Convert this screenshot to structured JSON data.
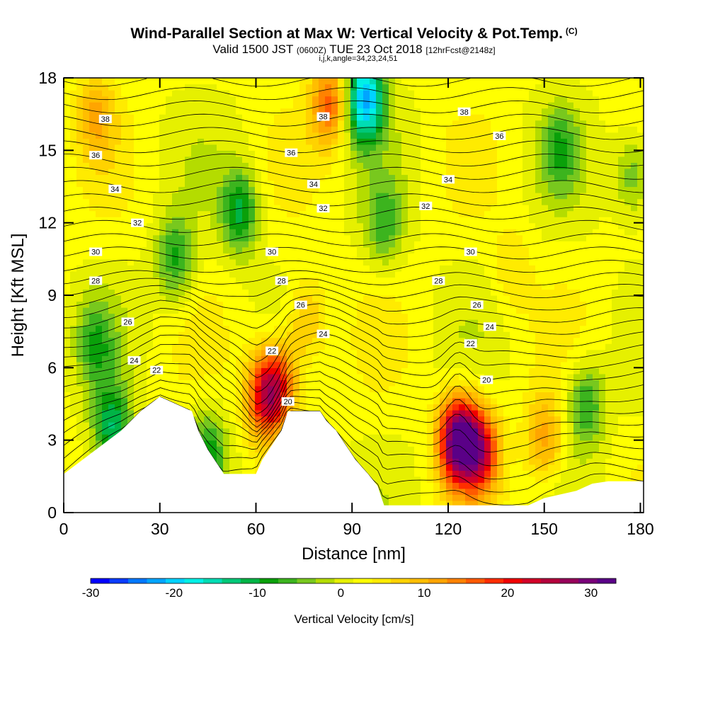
{
  "header": {
    "title_main": "Wind-Parallel Section at Max W: Vertical Velocity & Pot.Temp.",
    "title_mark": "(C)",
    "valid_prefix": "Valid 1500 JST",
    "valid_z": "(0600Z)",
    "valid_date": "TUE 23 Oct 2018",
    "valid_fcst": "[12hrFcst@2148z]",
    "indices": "i,j,k,angle=34,23,24,51"
  },
  "colors": {
    "colorbar": [
      "#0000ff",
      "#0a3cff",
      "#0078ff",
      "#00a5ff",
      "#00d2ff",
      "#00f0e6",
      "#00dcb4",
      "#00c878",
      "#00b446",
      "#0aa00a",
      "#3cb41e",
      "#78c81e",
      "#b4dc00",
      "#e6f000",
      "#ffff00",
      "#ffeb00",
      "#ffd200",
      "#ffbe00",
      "#ffa500",
      "#ff8200",
      "#ff5a00",
      "#ff2d00",
      "#f00000",
      "#d20028",
      "#b4003c",
      "#96005a",
      "#780078",
      "#5a0087"
    ],
    "terrain": "#ffffff",
    "contour": "#000000"
  },
  "chart_data": {
    "type": "heatmap",
    "xlabel": "Distance [nm]",
    "ylabel": "Height [Kft MSL]",
    "xlim": [
      0,
      181
    ],
    "ylim": [
      0,
      18
    ],
    "xticks": [
      0,
      30,
      60,
      90,
      120,
      150,
      180
    ],
    "yticks": [
      0,
      3,
      6,
      9,
      12,
      15,
      18
    ],
    "colorbar": {
      "label": "Vertical Velocity [cm/s]",
      "range": [
        -30,
        33
      ],
      "ticks": [
        -30,
        -20,
        -10,
        0,
        10,
        20,
        30
      ]
    },
    "velocity_features": [
      {
        "x": 94,
        "y": 17.2,
        "w": -24
      },
      {
        "x": 63,
        "y": 4.8,
        "w": 20
      },
      {
        "x": 123,
        "y": 3.0,
        "w": 30
      },
      {
        "x": 130,
        "y": 2.6,
        "w": 20
      },
      {
        "x": 55,
        "y": 12.5,
        "w": -12
      },
      {
        "x": 35,
        "y": 10.5,
        "w": -10
      },
      {
        "x": 15,
        "y": 3.5,
        "w": -14
      },
      {
        "x": 10,
        "y": 7.0,
        "w": -8
      },
      {
        "x": 83,
        "y": 17.0,
        "w": 14
      },
      {
        "x": 45,
        "y": 2.5,
        "w": -10
      },
      {
        "x": 163,
        "y": 4.5,
        "w": -10
      },
      {
        "x": 150,
        "y": 3.0,
        "w": 10
      },
      {
        "x": 178,
        "y": 14.0,
        "w": -8
      },
      {
        "x": 155,
        "y": 15.0,
        "w": -8
      },
      {
        "x": 10,
        "y": 16.5,
        "w": 8
      },
      {
        "x": 68,
        "y": 5.5,
        "w": 12
      },
      {
        "x": 76,
        "y": 8.0,
        "w": 8
      },
      {
        "x": 100,
        "y": 12.0,
        "w": -8
      },
      {
        "x": 140,
        "y": 10.0,
        "w": 4
      }
    ],
    "terrain_profile": {
      "x": [
        0,
        3,
        6,
        9,
        12,
        15,
        18,
        21,
        24,
        27,
        30,
        40,
        42,
        45,
        48,
        50,
        52,
        56,
        60,
        62,
        65,
        68,
        70,
        80,
        82,
        85,
        87,
        89,
        91,
        93,
        95,
        98,
        100,
        110,
        125,
        145,
        150,
        160,
        165,
        170,
        181
      ],
      "y": [
        1.6,
        1.9,
        2.2,
        2.5,
        2.8,
        3.1,
        3.4,
        3.8,
        4.2,
        4.5,
        4.8,
        4.2,
        3.4,
        2.6,
        2.0,
        1.6,
        1.6,
        1.6,
        1.6,
        2.2,
        2.8,
        3.4,
        4.2,
        4.2,
        3.8,
        3.4,
        3.0,
        2.6,
        2.2,
        1.9,
        1.6,
        1.1,
        0.3,
        0.3,
        0.3,
        0.3,
        0.6,
        0.9,
        1.2,
        1.3,
        1.3
      ]
    },
    "theta_labels": [
      {
        "text": "38",
        "x": 13,
        "y": 16.3
      },
      {
        "text": "36",
        "x": 10,
        "y": 14.8
      },
      {
        "text": "34",
        "x": 16,
        "y": 13.4
      },
      {
        "text": "32",
        "x": 23,
        "y": 12.0
      },
      {
        "text": "30",
        "x": 10,
        "y": 10.8
      },
      {
        "text": "28",
        "x": 10,
        "y": 9.6
      },
      {
        "text": "26",
        "x": 20,
        "y": 7.9
      },
      {
        "text": "24",
        "x": 22,
        "y": 6.3
      },
      {
        "text": "22",
        "x": 29,
        "y": 5.9
      },
      {
        "text": "36",
        "x": 71,
        "y": 14.9
      },
      {
        "text": "38",
        "x": 81,
        "y": 16.4
      },
      {
        "text": "34",
        "x": 78,
        "y": 13.6
      },
      {
        "text": "32",
        "x": 81,
        "y": 12.6
      },
      {
        "text": "30",
        "x": 65,
        "y": 10.8
      },
      {
        "text": "28",
        "x": 68,
        "y": 9.6
      },
      {
        "text": "26",
        "x": 74,
        "y": 8.6
      },
      {
        "text": "24",
        "x": 81,
        "y": 7.4
      },
      {
        "text": "22",
        "x": 65,
        "y": 6.7
      },
      {
        "text": "20",
        "x": 70,
        "y": 4.6
      },
      {
        "text": "38",
        "x": 125,
        "y": 16.6
      },
      {
        "text": "36",
        "x": 136,
        "y": 15.6
      },
      {
        "text": "34",
        "x": 120,
        "y": 13.8
      },
      {
        "text": "32",
        "x": 113,
        "y": 12.7
      },
      {
        "text": "30",
        "x": 127,
        "y": 10.8
      },
      {
        "text": "28",
        "x": 117,
        "y": 9.6
      },
      {
        "text": "26",
        "x": 129,
        "y": 8.6
      },
      {
        "text": "24",
        "x": 133,
        "y": 7.7
      },
      {
        "text": "22",
        "x": 127,
        "y": 7.0
      },
      {
        "text": "20",
        "x": 132,
        "y": 5.5
      }
    ]
  }
}
